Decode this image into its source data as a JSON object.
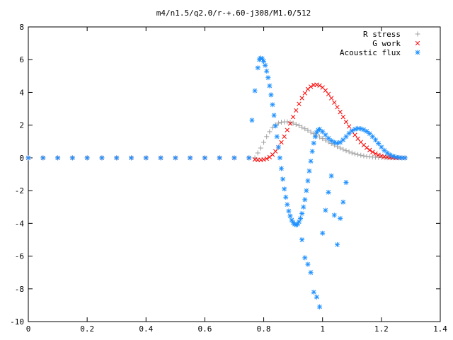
{
  "chart_data": {
    "type": "scatter",
    "title": "m4/n1.5/q2.0/r-+.60-j308/M1.0/512",
    "xlabel": "",
    "ylabel": "",
    "xlim": [
      0,
      1.4
    ],
    "ylim": [
      -10,
      8
    ],
    "x_ticks": [
      "0",
      "0.2",
      "0.4",
      "0.6",
      "0.8",
      "1",
      "1.2",
      "1.4"
    ],
    "y_ticks": [
      "8",
      "6",
      "4",
      "2",
      "0",
      "-2",
      "-4",
      "-6",
      "-8",
      "-10"
    ],
    "grid": false,
    "legend_position": "top-right",
    "series": [
      {
        "name": "R stress",
        "marker": "+",
        "color": "#a0a0a0",
        "x": [
          0.0,
          0.05,
          0.1,
          0.15,
          0.2,
          0.25,
          0.3,
          0.35,
          0.4,
          0.45,
          0.5,
          0.55,
          0.6,
          0.65,
          0.7,
          0.75,
          0.77,
          0.78,
          0.79,
          0.8,
          0.81,
          0.82,
          0.83,
          0.84,
          0.85,
          0.86,
          0.87,
          0.88,
          0.89,
          0.9,
          0.91,
          0.92,
          0.93,
          0.94,
          0.95,
          0.96,
          0.97,
          0.98,
          0.99,
          1.0,
          1.01,
          1.02,
          1.03,
          1.04,
          1.05,
          1.06,
          1.07,
          1.08,
          1.09,
          1.1,
          1.11,
          1.12,
          1.13,
          1.14,
          1.15,
          1.16,
          1.17,
          1.18,
          1.19,
          1.2,
          1.21,
          1.22,
          1.23,
          1.24,
          1.25,
          1.26,
          1.27,
          1.28
        ],
        "y": [
          0,
          0,
          0,
          0,
          0,
          0,
          0,
          0,
          0,
          0,
          0,
          0,
          0,
          0,
          0,
          0,
          0.0,
          0.3,
          0.6,
          0.95,
          1.3,
          1.6,
          1.85,
          2.02,
          2.12,
          2.18,
          2.2,
          2.2,
          2.17,
          2.12,
          2.05,
          1.97,
          1.88,
          1.78,
          1.68,
          1.58,
          1.48,
          1.38,
          1.28,
          1.18,
          1.08,
          0.98,
          0.88,
          0.78,
          0.69,
          0.6,
          0.52,
          0.44,
          0.37,
          0.3,
          0.25,
          0.2,
          0.16,
          0.12,
          0.09,
          0.07,
          0.05,
          0.04,
          0.03,
          0.02,
          0.015,
          0.01,
          0.008,
          0.005,
          0.003,
          0.002,
          0.001,
          0.0
        ]
      },
      {
        "name": "G work",
        "marker": "x",
        "color": "#ff0000",
        "x": [
          0.0,
          0.05,
          0.1,
          0.15,
          0.2,
          0.25,
          0.3,
          0.35,
          0.4,
          0.45,
          0.5,
          0.55,
          0.6,
          0.65,
          0.7,
          0.75,
          0.77,
          0.78,
          0.79,
          0.8,
          0.81,
          0.82,
          0.83,
          0.84,
          0.85,
          0.86,
          0.87,
          0.88,
          0.89,
          0.9,
          0.91,
          0.92,
          0.93,
          0.94,
          0.95,
          0.96,
          0.97,
          0.98,
          0.99,
          1.0,
          1.01,
          1.02,
          1.03,
          1.04,
          1.05,
          1.06,
          1.07,
          1.08,
          1.09,
          1.1,
          1.11,
          1.12,
          1.13,
          1.14,
          1.15,
          1.16,
          1.17,
          1.18,
          1.19,
          1.2,
          1.21,
          1.22,
          1.23,
          1.24,
          1.25,
          1.26,
          1.27,
          1.28
        ],
        "y": [
          0,
          0,
          0,
          0,
          0,
          0,
          0,
          0,
          0,
          0,
          0,
          0,
          0,
          0,
          0,
          0,
          -0.1,
          -0.12,
          -0.12,
          -0.1,
          -0.05,
          0.05,
          0.2,
          0.4,
          0.65,
          0.95,
          1.3,
          1.7,
          2.1,
          2.5,
          2.9,
          3.3,
          3.65,
          3.95,
          4.2,
          4.35,
          4.45,
          4.47,
          4.42,
          4.3,
          4.12,
          3.9,
          3.65,
          3.38,
          3.1,
          2.8,
          2.5,
          2.2,
          1.92,
          1.65,
          1.4,
          1.17,
          0.96,
          0.78,
          0.62,
          0.48,
          0.36,
          0.26,
          0.18,
          0.12,
          0.07,
          0.04,
          0.02,
          0.01,
          0.0,
          0.0,
          0.0,
          0.0
        ]
      },
      {
        "name": "Acoustic flux",
        "marker": "*",
        "color": "#1e90ff",
        "x": [
          0.0,
          0.05,
          0.1,
          0.15,
          0.2,
          0.25,
          0.3,
          0.35,
          0.4,
          0.45,
          0.5,
          0.55,
          0.6,
          0.65,
          0.7,
          0.75,
          0.76,
          0.77,
          0.78,
          0.785,
          0.79,
          0.795,
          0.8,
          0.805,
          0.81,
          0.815,
          0.82,
          0.825,
          0.83,
          0.835,
          0.84,
          0.845,
          0.85,
          0.855,
          0.86,
          0.865,
          0.87,
          0.875,
          0.88,
          0.885,
          0.89,
          0.895,
          0.9,
          0.905,
          0.91,
          0.915,
          0.92,
          0.925,
          0.93,
          0.935,
          0.94,
          0.945,
          0.95,
          0.955,
          0.96,
          0.965,
          0.97,
          0.975,
          0.98,
          0.985,
          0.99,
          1.0,
          1.01,
          1.02,
          1.03,
          1.04,
          1.05,
          1.06,
          1.07,
          1.08,
          1.09,
          1.1,
          1.11,
          1.12,
          1.13,
          1.14,
          1.15,
          1.16,
          1.17,
          1.18,
          1.19,
          1.2,
          1.21,
          1.22,
          1.23,
          1.24,
          1.25,
          1.26,
          1.27,
          1.28,
          0.93,
          0.94,
          0.95,
          0.96,
          0.97,
          0.98,
          0.99,
          1.0,
          1.01,
          1.02,
          1.03,
          1.04,
          1.05,
          1.06,
          1.07,
          1.08
        ],
        "y": [
          0,
          0,
          0,
          0,
          0,
          0,
          0,
          0,
          0,
          0,
          0,
          0,
          0,
          0,
          0,
          0,
          2.3,
          4.1,
          5.5,
          6.0,
          6.1,
          6.05,
          5.9,
          5.65,
          5.3,
          4.9,
          4.4,
          3.85,
          3.25,
          2.6,
          1.95,
          1.3,
          0.65,
          0.0,
          -0.65,
          -1.3,
          -1.9,
          -2.4,
          -2.85,
          -3.25,
          -3.55,
          -3.8,
          -3.95,
          -4.05,
          -4.1,
          -4.05,
          -3.9,
          -3.7,
          -3.4,
          -3.0,
          -2.55,
          -2.0,
          -1.4,
          -0.8,
          -0.2,
          0.4,
          0.9,
          1.3,
          1.55,
          1.7,
          1.75,
          1.6,
          1.4,
          1.2,
          1.05,
          0.95,
          0.9,
          0.95,
          1.1,
          1.3,
          1.5,
          1.65,
          1.75,
          1.8,
          1.78,
          1.72,
          1.62,
          1.48,
          1.3,
          1.1,
          0.88,
          0.66,
          0.46,
          0.3,
          0.18,
          0.1,
          0.05,
          0.02,
          0.0,
          0.0,
          -5.0,
          -6.1,
          -6.5,
          -7.0,
          -8.2,
          -8.5,
          -9.1,
          -4.6,
          -3.2,
          -2.1,
          -1.1,
          -3.5,
          -5.3,
          -3.7,
          -2.7,
          -1.5
        ]
      }
    ]
  }
}
